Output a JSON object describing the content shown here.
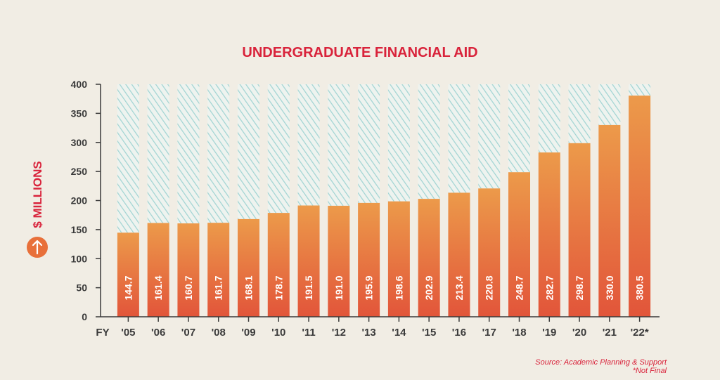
{
  "chart_data": {
    "type": "bar",
    "title": "UNDERGRADUATE FINANCIAL AID",
    "ylabel": "$ MILLIONS",
    "x_axis_prefix": "FY",
    "categories": [
      "'05",
      "'06",
      "'07",
      "'08",
      "'09",
      "'10",
      "'11",
      "'12",
      "'13",
      "'14",
      "'15",
      "'16",
      "'17",
      "'18",
      "'19",
      "'20",
      "'21",
      "'22*"
    ],
    "values": [
      144.7,
      161.4,
      160.7,
      161.7,
      168.1,
      178.7,
      191.5,
      191.0,
      195.9,
      198.6,
      202.9,
      213.4,
      220.8,
      248.7,
      282.7,
      298.7,
      330.0,
      380.5
    ],
    "data_labels": [
      "144.7",
      "161.4",
      "160.7",
      "161.7",
      "168.1",
      "178.7",
      "191.5",
      "191.0",
      "195.9",
      "198.6",
      "202.9",
      "213.4",
      "220.8",
      "248.7",
      "282.7",
      "298.7",
      "330.0",
      "380.5"
    ],
    "ylim": [
      0,
      400
    ],
    "yticks": [
      0,
      50,
      100,
      150,
      200,
      250,
      300,
      350,
      400
    ],
    "grid": false,
    "legend": "none",
    "source": "Source: Academic Planning & Support",
    "footnote": "*Not Final"
  },
  "colors": {
    "title": "#d9233b",
    "bar_top": "#ec9a4a",
    "bar_bottom": "#e2553a",
    "hatch": "#9fd3d2",
    "hatch_bg": "#eef3ef",
    "axis": "#3a3a3a",
    "icon": "#e8703a",
    "source": "#d9233b"
  },
  "icon": "arrow-up-circle-icon"
}
